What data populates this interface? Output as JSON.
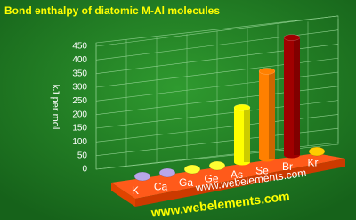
{
  "chart_data": {
    "type": "bar3d",
    "title": "Bond enthalpy of diatomic M-Al molecules",
    "y_label": "kJ per mol",
    "categories": [
      "K",
      "Ca",
      "Ga",
      "Ge",
      "As",
      "Se",
      "Br",
      "Kr"
    ],
    "values": [
      null,
      null,
      null,
      null,
      200,
      320,
      430,
      null
    ],
    "colors": [
      "#b9a7e8",
      "#b9a7e8",
      "#ffff33",
      "#ffff33",
      "#ffff00",
      "#ff8000",
      "#a00000",
      "#ffcc00"
    ],
    "ylim": [
      0,
      450
    ],
    "yticks": [
      0,
      50,
      100,
      150,
      200,
      250,
      300,
      350,
      400,
      450
    ],
    "grid": true,
    "watermark": "www.webelements.com",
    "footer": "www.webelements.com"
  }
}
